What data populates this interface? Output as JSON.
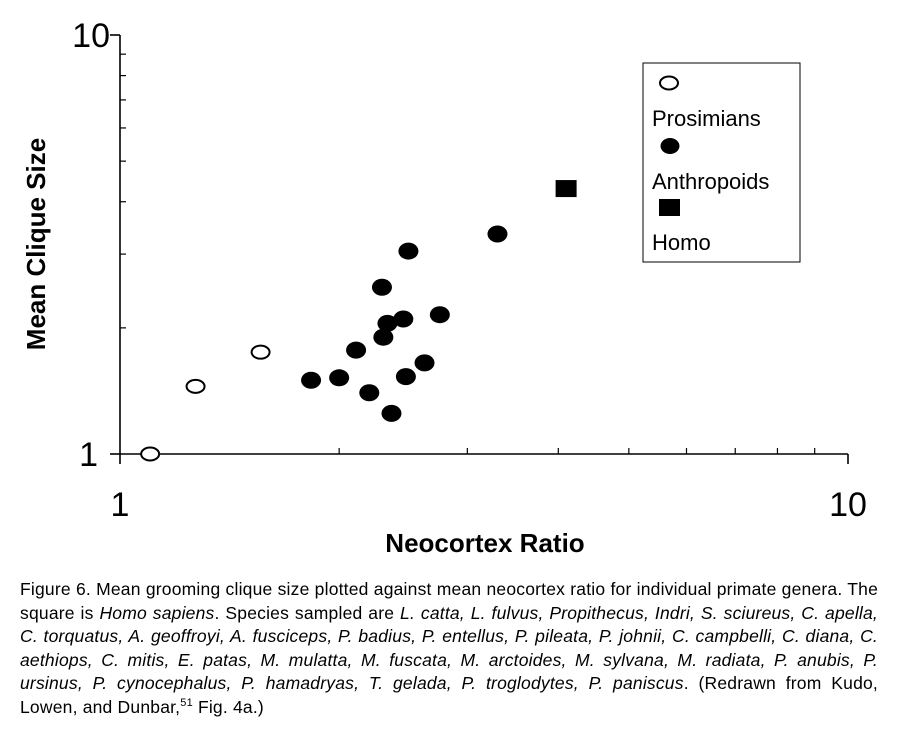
{
  "chart_data": {
    "type": "scatter",
    "title": "",
    "xlabel": "Neocortex Ratio",
    "ylabel": "Mean Clique Size",
    "x_scale": "log",
    "y_scale": "log",
    "xlim": [
      1,
      10
    ],
    "ylim": [
      1,
      10
    ],
    "x_ticks": [
      "1",
      "10"
    ],
    "y_ticks": [
      "1",
      "10"
    ],
    "grid": false,
    "legend_position": "top-right",
    "series": [
      {
        "name": "Prosimians",
        "marker": "open-circle",
        "points": [
          {
            "x": 1.1,
            "y": 1.0
          },
          {
            "x": 1.27,
            "y": 1.45
          },
          {
            "x": 1.56,
            "y": 1.75
          }
        ]
      },
      {
        "name": "Anthropoids",
        "marker": "filled-circle",
        "points": [
          {
            "x": 1.83,
            "y": 1.5
          },
          {
            "x": 2.0,
            "y": 1.52
          },
          {
            "x": 2.11,
            "y": 1.77
          },
          {
            "x": 2.2,
            "y": 1.4
          },
          {
            "x": 2.29,
            "y": 2.5
          },
          {
            "x": 2.3,
            "y": 1.9
          },
          {
            "x": 2.33,
            "y": 2.05
          },
          {
            "x": 2.36,
            "y": 1.25
          },
          {
            "x": 2.45,
            "y": 2.1
          },
          {
            "x": 2.47,
            "y": 1.53
          },
          {
            "x": 2.49,
            "y": 3.05
          },
          {
            "x": 2.62,
            "y": 1.65
          },
          {
            "x": 2.75,
            "y": 2.15
          },
          {
            "x": 3.3,
            "y": 3.35
          }
        ]
      },
      {
        "name": "Homo",
        "marker": "filled-square",
        "points": [
          {
            "x": 4.1,
            "y": 4.3
          }
        ]
      }
    ]
  },
  "caption": {
    "lead": "Figure 6. Mean grooming clique size plotted against mean neocortex ratio for individual primate genera. The square is ",
    "homo_sapiens": "Homo sapiens",
    "species_intro": ". Species sampled are ",
    "species_list": "L. catta, L. fulvus, Propithecus, Indri, S. sciureus, C. apella, C. torquatus, A. geoffroyi, A. fusciceps, P. badius, P. entellus, P. pileata, P. johnii, C. campbelli, C. diana, C. aethiops, C. mitis, E. patas, M. mulatta, M. fuscata, M. arctoides, M. sylvana, M. radiata, P. anubis, P. ursinus, P. cynocephalus, P. hamadryas, T. gelada, P. troglodytes, P. paniscus",
    "source_prefix": ". (Redrawn from Kudo, Lowen, and Dunbar,",
    "ref_number": "51",
    "source_suffix": " Fig. 4a.)"
  }
}
